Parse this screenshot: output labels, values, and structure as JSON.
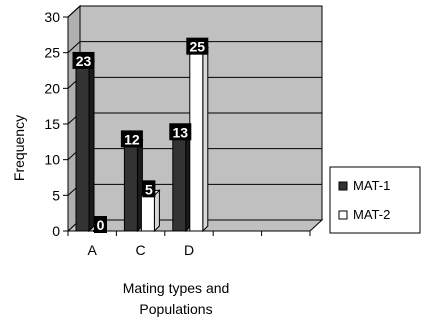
{
  "chart_data": {
    "type": "bar",
    "categories": [
      "A",
      "C",
      "D"
    ],
    "series": [
      {
        "name": "MAT-1",
        "values": [
          23,
          12,
          13
        ],
        "color": "#333333"
      },
      {
        "name": "MAT-2",
        "values": [
          0,
          5,
          25
        ],
        "color": "#ffffff"
      }
    ],
    "title": "",
    "xlabel": [
      "Mating types and",
      "Populations"
    ],
    "ylabel": "Frequency",
    "ylim": [
      0,
      30
    ],
    "yticks": [
      0,
      5,
      10,
      15,
      20,
      25,
      30
    ],
    "grid": true,
    "legend_position": "right",
    "plot_background": "#c0c0c0",
    "style": "3d-bar"
  }
}
